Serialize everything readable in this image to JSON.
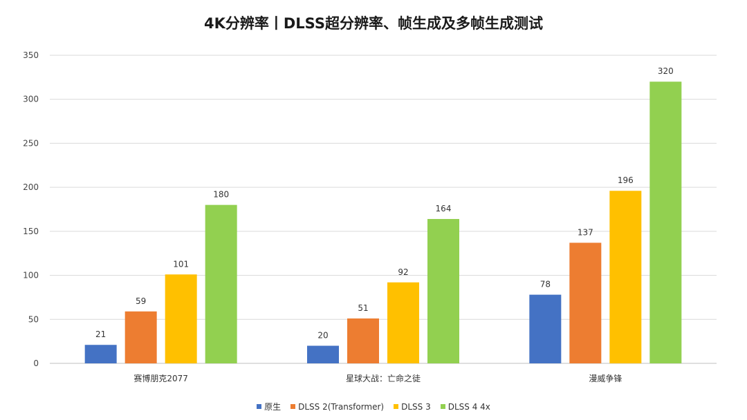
{
  "chart_data": {
    "type": "bar",
    "title": "4K分辨率丨DLSS超分辨率、帧生成及多帧生成测试",
    "categories": [
      "赛博朋克2077",
      "星球大战：亡命之徒",
      "漫威争锋"
    ],
    "series": [
      {
        "name": "原生",
        "color": "#4472c4",
        "values": [
          21,
          20,
          78
        ]
      },
      {
        "name": "DLSS 2(Transformer)",
        "color": "#ed7d31",
        "values": [
          59,
          51,
          137
        ]
      },
      {
        "name": "DLSS 3",
        "color": "#ffc000",
        "values": [
          101,
          92,
          196
        ]
      },
      {
        "name": "DLSS 4 4x",
        "color": "#92d050",
        "values": [
          180,
          164,
          320
        ]
      }
    ],
    "ylim": [
      0,
      350
    ],
    "yticks": [
      0,
      50,
      100,
      150,
      200,
      250,
      300,
      350
    ],
    "grid": true,
    "legend_position": "bottom-center",
    "xlabel": "",
    "ylabel": ""
  }
}
